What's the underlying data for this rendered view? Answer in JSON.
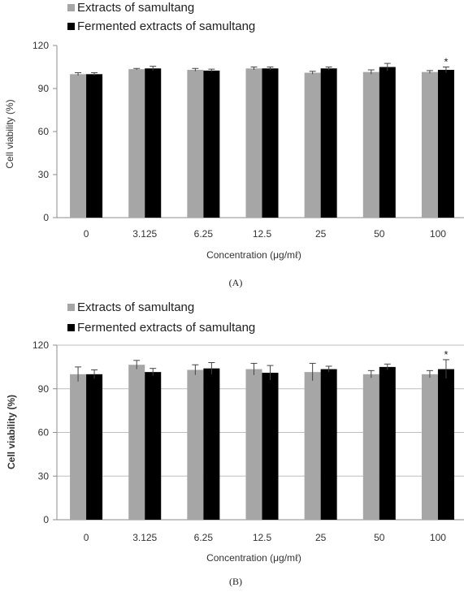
{
  "colors": {
    "series1": "#a6a6a6",
    "series2": "#000000",
    "axis": "#8c8c8c",
    "grid": "#bfbfbf"
  },
  "chart_data": [
    {
      "type": "bar",
      "panel_label": "(A)",
      "categories": [
        "0",
        "3.125",
        "6.25",
        "12.5",
        "25",
        "50",
        "100"
      ],
      "xlabel": "Concentration (μg/mℓ)",
      "ylabel": "Cell viability (%)",
      "ylabel_bold": false,
      "ylim": [
        0,
        120
      ],
      "yticks": [
        "0",
        "30",
        "60",
        "90",
        "120"
      ],
      "grid": false,
      "legend_position": "top-left",
      "series": [
        {
          "name": "Extracts of samultang",
          "color_key": "series1",
          "values": [
            100,
            103.5,
            103,
            104,
            101,
            101.5,
            101.5
          ],
          "errors": [
            1,
            0.5,
            1,
            1,
            1,
            1.5,
            1
          ]
        },
        {
          "name": "Fermented extracts of samultang",
          "color_key": "series2",
          "values": [
            100,
            104,
            102.5,
            104,
            104,
            105,
            103
          ],
          "errors": [
            1,
            1.5,
            1,
            1,
            1,
            2.5,
            2
          ]
        }
      ],
      "annotations": [
        {
          "text": "*",
          "category": "100",
          "series": 1
        }
      ]
    },
    {
      "type": "bar",
      "panel_label": "(B)",
      "categories": [
        "0",
        "3.125",
        "6.25",
        "12.5",
        "25",
        "50",
        "100"
      ],
      "xlabel": "Concentration (μg/mℓ)",
      "ylabel": "Cell viability (%)",
      "ylabel_bold": true,
      "ylim": [
        0,
        120
      ],
      "yticks": [
        "0",
        "30",
        "60",
        "90",
        "120"
      ],
      "grid": true,
      "legend_position": "top-left",
      "series": [
        {
          "name": "Extracts of samultang",
          "color_key": "series1",
          "values": [
            100,
            106.5,
            103,
            103.5,
            101.5,
            100,
            100
          ],
          "errors": [
            5,
            3,
            3.5,
            4,
            6,
            2.5,
            2.5
          ]
        },
        {
          "name": "Fermented extracts of samultang",
          "color_key": "series2",
          "values": [
            100,
            101.5,
            104,
            101,
            103.5,
            105,
            103.5
          ],
          "errors": [
            3,
            2.5,
            4,
            5,
            2,
            2,
            6.5
          ]
        }
      ],
      "annotations": [
        {
          "text": "*",
          "category": "100",
          "series": 1
        }
      ]
    }
  ]
}
